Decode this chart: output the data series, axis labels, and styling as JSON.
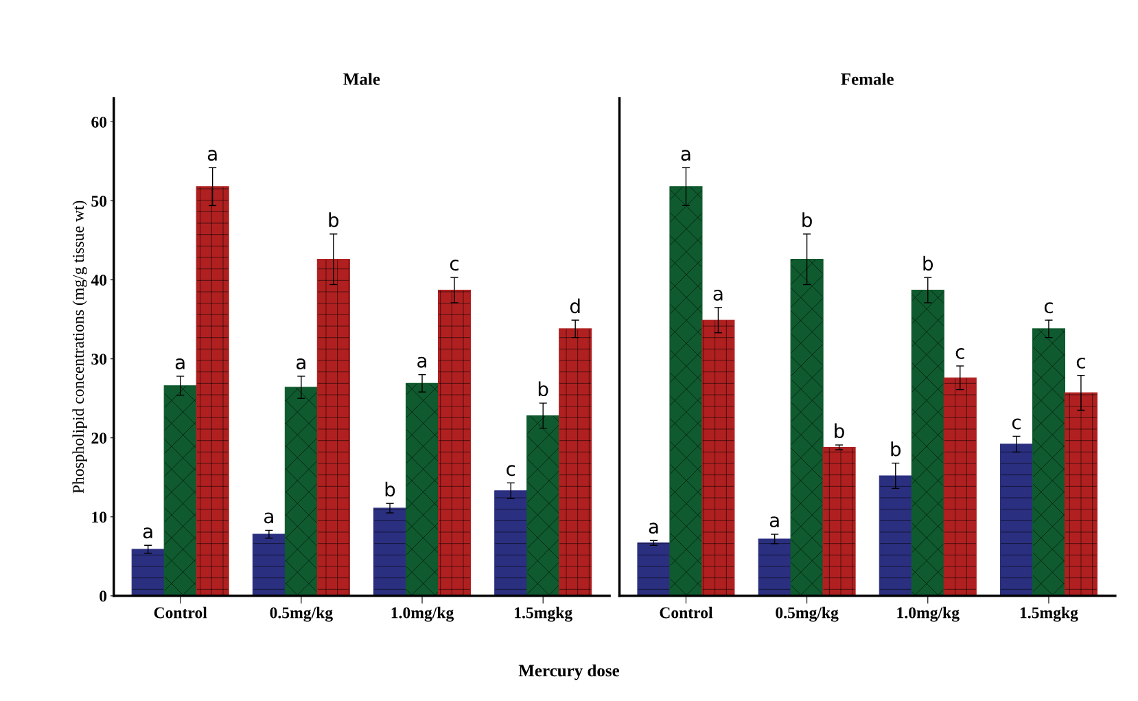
{
  "chart_data": [
    {
      "type": "bar",
      "title": "Male",
      "xlabel": "Mercury dose",
      "ylabel": "Phospholipid concentrations (mg/g tissue wt)",
      "categories": [
        "Control",
        "0.5mg/kg",
        "1.0mg/kg",
        "1.5mgkg"
      ],
      "ylim": [
        0,
        63
      ],
      "yticks": [
        0,
        10,
        20,
        30,
        40,
        50,
        60
      ],
      "grid": false,
      "series": [
        {
          "color": "#2b2f80",
          "values": [
            5.9,
            7.8,
            11.1,
            13.3
          ],
          "errors": [
            0.5,
            0.5,
            0.6,
            1.0
          ],
          "value_labels": [
            "a",
            "a",
            "b",
            "c"
          ]
        },
        {
          "color": "#0f5a2e",
          "values": [
            26.6,
            26.4,
            26.9,
            22.8
          ],
          "errors": [
            1.2,
            1.4,
            1.1,
            1.6
          ],
          "value_labels": [
            "a",
            "a",
            "a",
            "b"
          ]
        },
        {
          "color": "#b02020",
          "values": [
            51.8,
            42.6,
            38.7,
            33.8
          ],
          "errors": [
            2.4,
            3.2,
            1.6,
            1.1
          ],
          "value_labels": [
            "a",
            "b",
            "c",
            "d"
          ]
        }
      ]
    },
    {
      "type": "bar",
      "title": "Female",
      "categories": [
        "Control",
        "0.5mg/kg",
        "1.0mg/kg",
        "1.5mgkg"
      ],
      "ylim": [
        0,
        63
      ],
      "tick_labels": "x",
      "grid": false,
      "series": [
        {
          "color": "#2b2f80",
          "values": [
            6.7,
            7.2,
            15.2,
            19.2
          ],
          "errors": [
            0.3,
            0.6,
            1.6,
            1.0
          ],
          "value_labels": [
            "a",
            "a",
            "b",
            "c"
          ]
        },
        {
          "color": "#0f5a2e",
          "values": [
            51.8,
            42.6,
            38.7,
            33.8
          ],
          "errors": [
            2.4,
            3.2,
            1.6,
            1.1
          ],
          "value_labels": [
            "a",
            "b",
            "b",
            "c"
          ]
        },
        {
          "color": "#b02020",
          "values": [
            34.9,
            18.8,
            27.6,
            25.7
          ],
          "errors": [
            1.6,
            0.3,
            1.5,
            2.2
          ],
          "value_labels": [
            "a",
            "b",
            "c",
            "c"
          ]
        }
      ]
    }
  ]
}
